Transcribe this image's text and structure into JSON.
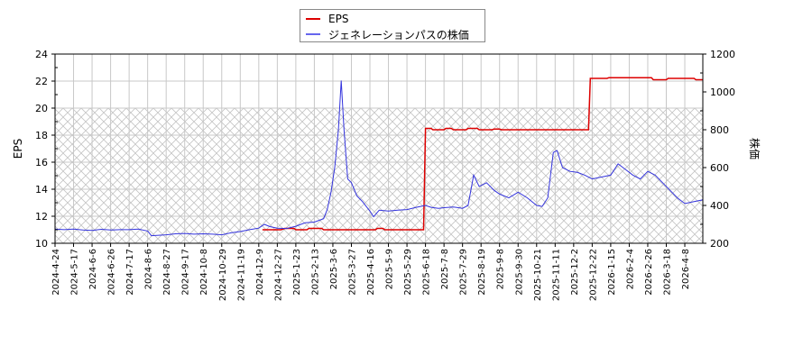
{
  "chart_data": {
    "type": "line",
    "title": "",
    "legend": {
      "position": "top-center",
      "entries": [
        {
          "label": "EPS",
          "color": "#dd0000"
        },
        {
          "label": "ジェネレーションパスの株価",
          "color": "#3333dd"
        }
      ]
    },
    "axes": {
      "left": {
        "label": "EPS",
        "range": [
          10,
          24
        ],
        "ticks": [
          10,
          12,
          14,
          16,
          18,
          20,
          22,
          24
        ]
      },
      "right": {
        "label": "株価",
        "range": [
          200,
          1200
        ],
        "ticks": [
          200,
          400,
          600,
          800,
          1000,
          1200
        ]
      },
      "x": {
        "label": "",
        "tick_labels": [
          "2024-4-24",
          "2024-5-17",
          "2024-6-6",
          "2024-6-26",
          "2024-7-17",
          "2024-8-6",
          "2024-8-27",
          "2024-9-17",
          "2024-10-8",
          "2024-10-29",
          "2024-11-19",
          "2024-12-9",
          "2024-12-27",
          "2025-1-23",
          "2025-2-13",
          "2025-3-6",
          "2025-3-27",
          "2025-4-16",
          "2025-5-9",
          "2025-5-29",
          "2025-6-18",
          "2025-7-8",
          "2025-7-29",
          "2025-8-19",
          "2025-9-8",
          "2025-9-30",
          "2025-10-21",
          "2025-11-11",
          "2025-12-2",
          "2025-12-22",
          "2026-1-15",
          "2026-2-4",
          "2026-2-26",
          "2026-3-18",
          "2026-4-8"
        ]
      }
    },
    "grid": true,
    "shaded_region": {
      "axis": "left",
      "from": 10,
      "to": 20,
      "pattern": "cross-hatch"
    },
    "series": [
      {
        "name": "EPS",
        "axis": "left",
        "color": "#dd0000",
        "step": true,
        "points": [
          [
            11.2,
            11.0
          ],
          [
            12.2,
            11.0
          ],
          [
            12.4,
            11.1
          ],
          [
            12.9,
            11.1
          ],
          [
            13.0,
            11.0
          ],
          [
            13.6,
            11.0
          ],
          [
            13.7,
            11.1
          ],
          [
            14.4,
            11.1
          ],
          [
            14.5,
            11.0
          ],
          [
            17.3,
            11.0
          ],
          [
            17.4,
            11.1
          ],
          [
            17.7,
            11.1
          ],
          [
            17.8,
            11.0
          ],
          [
            19.9,
            11.0
          ],
          [
            20.0,
            18.5
          ],
          [
            20.3,
            18.5
          ],
          [
            20.4,
            18.4
          ],
          [
            21.0,
            18.4
          ],
          [
            21.1,
            18.5
          ],
          [
            21.4,
            18.5
          ],
          [
            21.5,
            18.4
          ],
          [
            22.2,
            18.4
          ],
          [
            22.3,
            18.5
          ],
          [
            22.8,
            18.5
          ],
          [
            22.9,
            18.4
          ],
          [
            23.6,
            18.4
          ],
          [
            23.7,
            18.45
          ],
          [
            24.0,
            18.45
          ],
          [
            24.1,
            18.4
          ],
          [
            28.8,
            18.4
          ],
          [
            28.9,
            22.2
          ],
          [
            29.8,
            22.2
          ],
          [
            29.9,
            22.25
          ],
          [
            32.2,
            22.25
          ],
          [
            32.3,
            22.1
          ],
          [
            33.0,
            22.1
          ],
          [
            33.1,
            22.2
          ],
          [
            34.5,
            22.2
          ],
          [
            34.6,
            22.1
          ],
          [
            35.0,
            22.1
          ]
        ]
      },
      {
        "name": "ジェネレーションパスの株価",
        "axis": "right",
        "color": "#3333dd",
        "points": [
          [
            0.0,
            275
          ],
          [
            0.5,
            272
          ],
          [
            1.0,
            275
          ],
          [
            1.5,
            270
          ],
          [
            2.0,
            268
          ],
          [
            2.5,
            274
          ],
          [
            3.0,
            270
          ],
          [
            3.5,
            272
          ],
          [
            4.0,
            272
          ],
          [
            4.5,
            275
          ],
          [
            5.0,
            265
          ],
          [
            5.2,
            240
          ],
          [
            5.5,
            242
          ],
          [
            6.0,
            245
          ],
          [
            6.5,
            250
          ],
          [
            7.0,
            252
          ],
          [
            7.5,
            248
          ],
          [
            8.0,
            250
          ],
          [
            8.5,
            248
          ],
          [
            9.0,
            245
          ],
          [
            9.5,
            255
          ],
          [
            10.0,
            262
          ],
          [
            10.5,
            272
          ],
          [
            11.0,
            280
          ],
          [
            11.3,
            300
          ],
          [
            11.6,
            288
          ],
          [
            12.0,
            280
          ],
          [
            12.5,
            278
          ],
          [
            13.0,
            290
          ],
          [
            13.5,
            308
          ],
          [
            14.0,
            312
          ],
          [
            14.5,
            330
          ],
          [
            14.7,
            380
          ],
          [
            14.9,
            470
          ],
          [
            15.1,
            600
          ],
          [
            15.3,
            800
          ],
          [
            15.45,
            1060
          ],
          [
            15.6,
            800
          ],
          [
            15.8,
            540
          ],
          [
            16.0,
            520
          ],
          [
            16.3,
            450
          ],
          [
            16.6,
            420
          ],
          [
            17.0,
            370
          ],
          [
            17.2,
            340
          ],
          [
            17.5,
            375
          ],
          [
            18.0,
            370
          ],
          [
            18.5,
            375
          ],
          [
            19.0,
            378
          ],
          [
            19.5,
            390
          ],
          [
            20.0,
            400
          ],
          [
            20.3,
            390
          ],
          [
            20.7,
            385
          ],
          [
            21.0,
            388
          ],
          [
            21.5,
            392
          ],
          [
            22.0,
            385
          ],
          [
            22.3,
            400
          ],
          [
            22.6,
            560
          ],
          [
            22.9,
            500
          ],
          [
            23.3,
            520
          ],
          [
            23.7,
            480
          ],
          [
            24.0,
            460
          ],
          [
            24.5,
            440
          ],
          [
            25.0,
            470
          ],
          [
            25.5,
            440
          ],
          [
            26.0,
            400
          ],
          [
            26.3,
            395
          ],
          [
            26.6,
            440
          ],
          [
            26.9,
            680
          ],
          [
            27.1,
            690
          ],
          [
            27.4,
            600
          ],
          [
            27.8,
            580
          ],
          [
            28.2,
            575
          ],
          [
            28.6,
            560
          ],
          [
            29.0,
            540
          ],
          [
            29.5,
            550
          ],
          [
            30.0,
            560
          ],
          [
            30.4,
            620
          ],
          [
            30.8,
            590
          ],
          [
            31.2,
            560
          ],
          [
            31.6,
            540
          ],
          [
            32.0,
            580
          ],
          [
            32.4,
            560
          ],
          [
            32.8,
            520
          ],
          [
            33.2,
            480
          ],
          [
            33.6,
            440
          ],
          [
            34.0,
            410
          ],
          [
            34.5,
            420
          ],
          [
            35.0,
            430
          ]
        ]
      }
    ]
  }
}
